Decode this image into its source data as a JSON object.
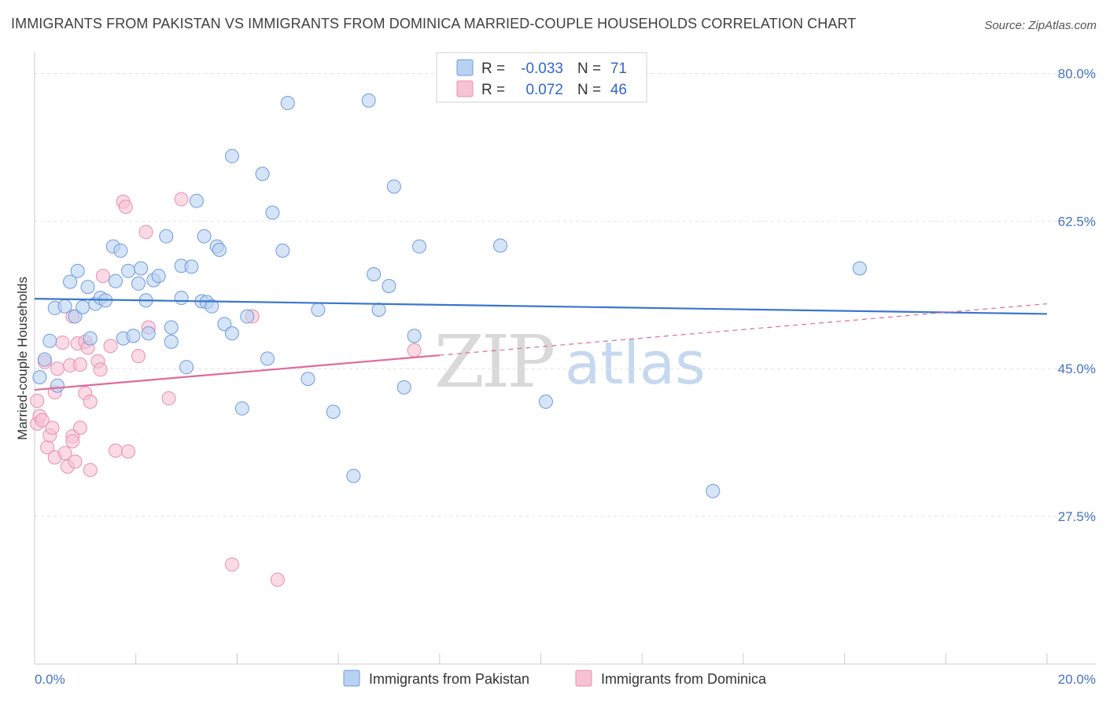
{
  "title": "IMMIGRANTS FROM PAKISTAN VS IMMIGRANTS FROM DOMINICA MARRIED-COUPLE HOUSEHOLDS CORRELATION CHART",
  "source": "Source: ZipAtlas.com",
  "watermark": {
    "zip": "ZIP",
    "atlas": "atlas"
  },
  "colors": {
    "blue": "#3a76cc",
    "blue_fill": "#b9d2f2",
    "pink": "#e0699a",
    "pink_fill": "#f7c2d4",
    "axis_label": "#4472c4"
  },
  "legend": {
    "rows": [
      {
        "r_label": "R =",
        "r_value": "-0.033",
        "n_label": "N =",
        "n_value": "71"
      },
      {
        "r_label": "R =",
        "r_value": "0.072",
        "n_label": "N =",
        "n_value": "46"
      }
    ]
  },
  "chart_data": {
    "type": "scatter",
    "title": "IMMIGRANTS FROM PAKISTAN VS IMMIGRANTS FROM DOMINICA MARRIED-COUPLE HOUSEHOLDS CORRELATION CHART",
    "xlabel": "",
    "ylabel": "Married-couple Households",
    "xlim": [
      0,
      20
    ],
    "ylim": [
      10,
      82
    ],
    "x_tick_labels": [
      "0.0%",
      "20.0%"
    ],
    "y_ticks": [
      27.5,
      45.0,
      62.5,
      80.0
    ],
    "y_tick_labels": [
      "27.5%",
      "45.0%",
      "62.5%",
      "80.0%"
    ],
    "series": [
      {
        "name": "Immigrants from Pakistan",
        "color": "blue",
        "R": -0.033,
        "N": 71,
        "trend": {
          "x": [
            0,
            20
          ],
          "y": [
            53.3,
            51.5
          ]
        },
        "points": [
          [
            0.1,
            44.0
          ],
          [
            0.2,
            46.1
          ],
          [
            0.3,
            48.3
          ],
          [
            0.4,
            52.2
          ],
          [
            0.45,
            43.0
          ],
          [
            0.6,
            52.4
          ],
          [
            0.7,
            55.3
          ],
          [
            0.8,
            51.2
          ],
          [
            0.85,
            56.6
          ],
          [
            0.95,
            52.3
          ],
          [
            1.05,
            54.7
          ],
          [
            1.1,
            48.6
          ],
          [
            1.2,
            52.7
          ],
          [
            1.3,
            53.4
          ],
          [
            1.4,
            53.1
          ],
          [
            1.55,
            59.5
          ],
          [
            1.6,
            55.4
          ],
          [
            1.7,
            59.0
          ],
          [
            1.75,
            48.6
          ],
          [
            1.85,
            56.6
          ],
          [
            1.95,
            48.9
          ],
          [
            2.05,
            55.1
          ],
          [
            2.1,
            56.9
          ],
          [
            2.2,
            53.1
          ],
          [
            2.25,
            49.2
          ],
          [
            2.35,
            55.5
          ],
          [
            2.45,
            56.0
          ],
          [
            2.6,
            60.7
          ],
          [
            2.7,
            48.2
          ],
          [
            2.7,
            49.9
          ],
          [
            2.9,
            57.2
          ],
          [
            2.9,
            53.4
          ],
          [
            3.0,
            45.2
          ],
          [
            3.1,
            57.1
          ],
          [
            3.2,
            64.9
          ],
          [
            3.3,
            53.0
          ],
          [
            3.35,
            60.7
          ],
          [
            3.4,
            52.9
          ],
          [
            3.5,
            52.4
          ],
          [
            3.6,
            59.5
          ],
          [
            3.65,
            59.1
          ],
          [
            3.75,
            50.3
          ],
          [
            3.9,
            70.2
          ],
          [
            3.9,
            49.2
          ],
          [
            4.1,
            40.3
          ],
          [
            4.2,
            51.2
          ],
          [
            4.5,
            68.1
          ],
          [
            4.6,
            46.2
          ],
          [
            4.7,
            63.5
          ],
          [
            4.9,
            59.0
          ],
          [
            5.0,
            76.5
          ],
          [
            5.4,
            43.8
          ],
          [
            5.6,
            52.0
          ],
          [
            5.9,
            39.9
          ],
          [
            6.3,
            32.3
          ],
          [
            6.6,
            76.8
          ],
          [
            6.7,
            56.2
          ],
          [
            6.8,
            52.0
          ],
          [
            7.0,
            54.8
          ],
          [
            7.1,
            66.6
          ],
          [
            7.3,
            42.8
          ],
          [
            7.5,
            48.9
          ],
          [
            7.6,
            59.5
          ],
          [
            9.2,
            59.6
          ],
          [
            10.1,
            41.1
          ],
          [
            13.4,
            30.5
          ],
          [
            16.3,
            56.9
          ]
        ]
      },
      {
        "name": "Immigrants from Dominica",
        "color": "pink",
        "R": 0.072,
        "N": 46,
        "trend_solid": {
          "x": [
            0,
            8.0
          ],
          "y": [
            42.5,
            46.6
          ]
        },
        "trend_dashed": {
          "x": [
            8.0,
            20
          ],
          "y": [
            46.6,
            52.7
          ]
        },
        "points": [
          [
            0.05,
            41.2
          ],
          [
            0.05,
            38.5
          ],
          [
            0.1,
            39.4
          ],
          [
            0.15,
            38.9
          ],
          [
            0.2,
            45.8
          ],
          [
            0.25,
            35.7
          ],
          [
            0.3,
            37.1
          ],
          [
            0.35,
            38.0
          ],
          [
            0.4,
            42.2
          ],
          [
            0.4,
            34.5
          ],
          [
            0.45,
            45.0
          ],
          [
            0.55,
            48.1
          ],
          [
            0.6,
            35.0
          ],
          [
            0.65,
            33.4
          ],
          [
            0.7,
            45.4
          ],
          [
            0.75,
            37.0
          ],
          [
            0.75,
            51.2
          ],
          [
            0.75,
            36.4
          ],
          [
            0.8,
            34.0
          ],
          [
            0.85,
            48.0
          ],
          [
            0.9,
            45.5
          ],
          [
            0.9,
            38.0
          ],
          [
            1.0,
            42.1
          ],
          [
            1.0,
            48.2
          ],
          [
            1.05,
            47.5
          ],
          [
            1.1,
            41.1
          ],
          [
            1.1,
            33.0
          ],
          [
            1.25,
            45.9
          ],
          [
            1.3,
            44.9
          ],
          [
            1.35,
            56.0
          ],
          [
            1.5,
            47.7
          ],
          [
            1.6,
            35.3
          ],
          [
            1.75,
            64.8
          ],
          [
            1.8,
            64.2
          ],
          [
            1.85,
            35.2
          ],
          [
            2.05,
            46.5
          ],
          [
            2.2,
            61.2
          ],
          [
            2.25,
            49.9
          ],
          [
            2.65,
            41.5
          ],
          [
            2.9,
            65.1
          ],
          [
            3.9,
            21.8
          ],
          [
            4.3,
            51.2
          ],
          [
            4.8,
            20.0
          ],
          [
            7.5,
            47.2
          ]
        ]
      }
    ]
  },
  "bottom_legend": {
    "items": [
      {
        "label": "Immigrants from Pakistan"
      },
      {
        "label": "Immigrants from Dominica"
      }
    ]
  }
}
